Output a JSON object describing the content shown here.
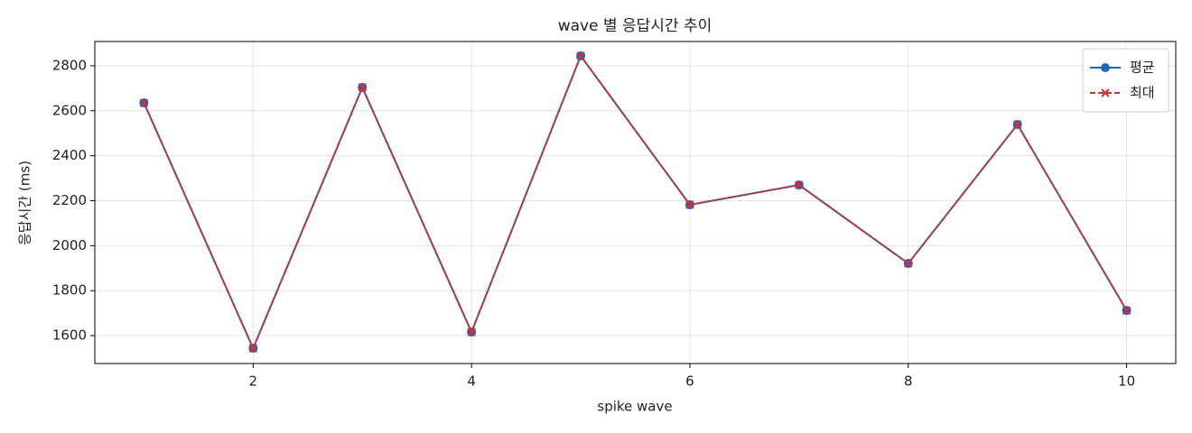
{
  "chart_data": {
    "type": "line",
    "title": "wave 별 응답시간 추이",
    "x_label": "spike wave",
    "y_label": "응답시간 (ms)",
    "x": [
      1,
      2,
      3,
      4,
      5,
      6,
      7,
      8,
      9,
      10
    ],
    "series": [
      {
        "name": "평균",
        "color": "#1f65c0",
        "marker": "circle",
        "dash": false,
        "values": [
          2635,
          1544,
          2704,
          1616,
          2844,
          2182,
          2270,
          1921,
          2539,
          1712
        ]
      },
      {
        "name": "최대",
        "color": "#d03030",
        "marker": "x",
        "dash": true,
        "values": [
          2635,
          1544,
          2704,
          1616,
          2844,
          2182,
          2270,
          1921,
          2539,
          1712
        ]
      }
    ],
    "xlim": [
      0.55,
      10.45
    ],
    "ylim": [
      1476,
      2908
    ],
    "xticks": [
      2,
      4,
      6,
      8,
      10
    ],
    "yticks": [
      1600,
      1800,
      2000,
      2200,
      2400,
      2600,
      2800
    ],
    "grid": true,
    "legend": "upper right"
  }
}
